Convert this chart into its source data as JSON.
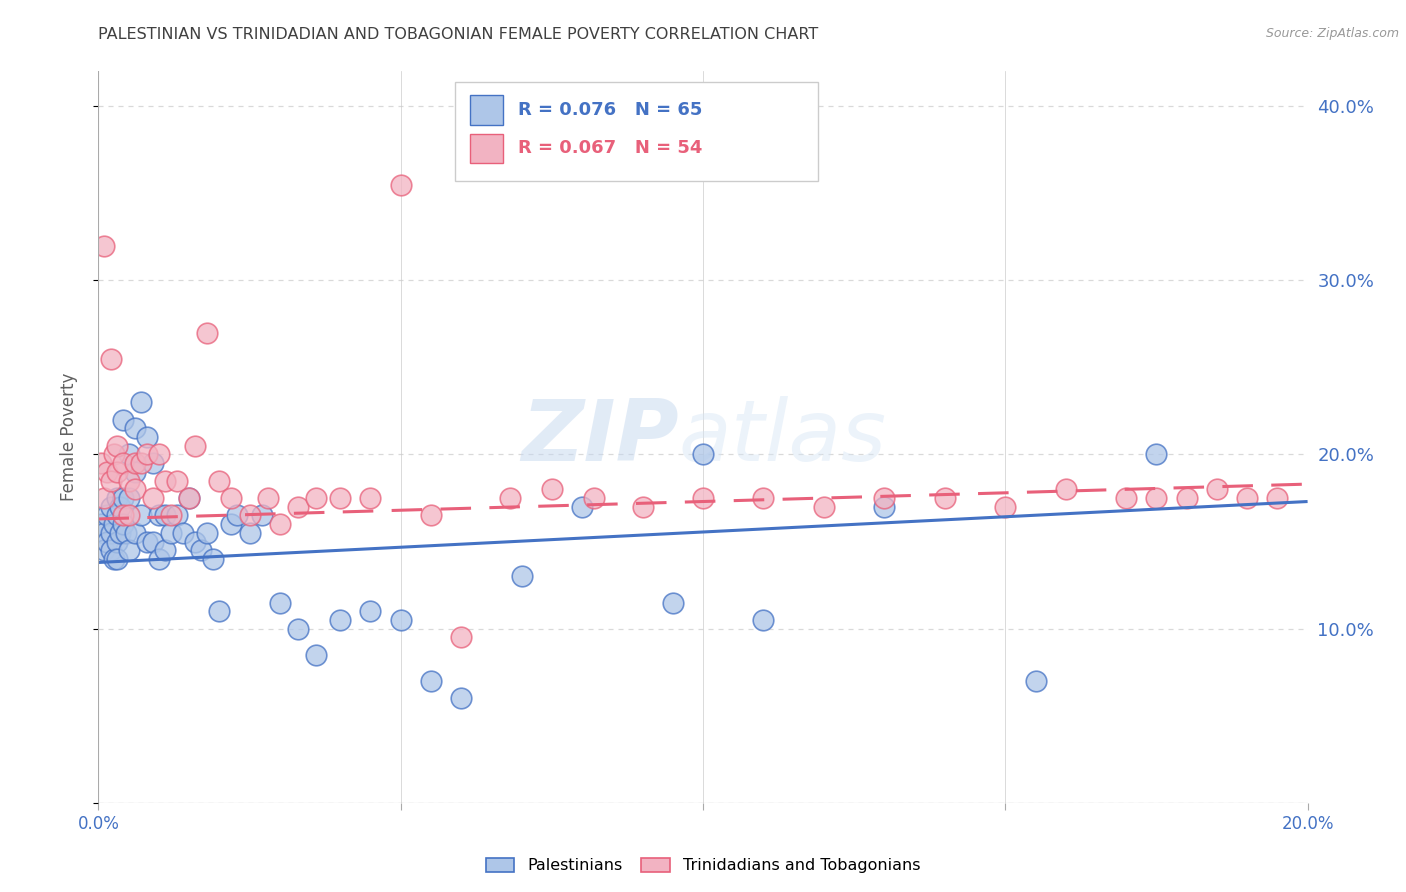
{
  "title": "PALESTINIAN VS TRINIDADIAN AND TOBAGONIAN FEMALE POVERTY CORRELATION CHART",
  "source": "Source: ZipAtlas.com",
  "ylabel_label": "Female Poverty",
  "xmin": 0.0,
  "xmax": 0.2,
  "ymin": 0.0,
  "ymax": 0.42,
  "yticks": [
    0.0,
    0.1,
    0.2,
    0.3,
    0.4
  ],
  "xticks": [
    0.0,
    0.05,
    0.1,
    0.15,
    0.2
  ],
  "blue_color": "#aec6e8",
  "pink_color": "#f2b3c2",
  "blue_line_color": "#4472c4",
  "pink_line_color": "#e8607a",
  "legend_blue_label": "Palestinians",
  "legend_pink_label": "Trinidadians and Tobagonians",
  "R_blue": 0.076,
  "N_blue": 65,
  "R_pink": 0.067,
  "N_pink": 54,
  "palestinians_x": [
    0.0005,
    0.001,
    0.001,
    0.0015,
    0.0015,
    0.002,
    0.002,
    0.002,
    0.0025,
    0.0025,
    0.003,
    0.003,
    0.003,
    0.003,
    0.0035,
    0.0035,
    0.004,
    0.004,
    0.004,
    0.0045,
    0.005,
    0.005,
    0.005,
    0.006,
    0.006,
    0.006,
    0.007,
    0.007,
    0.008,
    0.008,
    0.009,
    0.009,
    0.01,
    0.01,
    0.011,
    0.011,
    0.012,
    0.013,
    0.014,
    0.015,
    0.016,
    0.017,
    0.018,
    0.019,
    0.02,
    0.022,
    0.023,
    0.025,
    0.027,
    0.03,
    0.033,
    0.036,
    0.04,
    0.045,
    0.05,
    0.055,
    0.06,
    0.07,
    0.08,
    0.095,
    0.1,
    0.11,
    0.13,
    0.155,
    0.175
  ],
  "palestinians_y": [
    0.16,
    0.155,
    0.145,
    0.165,
    0.15,
    0.17,
    0.155,
    0.145,
    0.16,
    0.14,
    0.175,
    0.165,
    0.15,
    0.14,
    0.17,
    0.155,
    0.22,
    0.175,
    0.16,
    0.155,
    0.2,
    0.175,
    0.145,
    0.215,
    0.19,
    0.155,
    0.23,
    0.165,
    0.21,
    0.15,
    0.195,
    0.15,
    0.165,
    0.14,
    0.165,
    0.145,
    0.155,
    0.165,
    0.155,
    0.175,
    0.15,
    0.145,
    0.155,
    0.14,
    0.11,
    0.16,
    0.165,
    0.155,
    0.165,
    0.115,
    0.1,
    0.085,
    0.105,
    0.11,
    0.105,
    0.07,
    0.06,
    0.13,
    0.17,
    0.115,
    0.2,
    0.105,
    0.17,
    0.07,
    0.2
  ],
  "trinidadian_x": [
    0.0005,
    0.001,
    0.001,
    0.0015,
    0.002,
    0.002,
    0.0025,
    0.003,
    0.003,
    0.004,
    0.004,
    0.005,
    0.005,
    0.006,
    0.006,
    0.007,
    0.008,
    0.009,
    0.01,
    0.011,
    0.012,
    0.013,
    0.015,
    0.016,
    0.018,
    0.02,
    0.022,
    0.025,
    0.028,
    0.03,
    0.033,
    0.036,
    0.04,
    0.045,
    0.05,
    0.055,
    0.06,
    0.068,
    0.075,
    0.082,
    0.09,
    0.1,
    0.11,
    0.12,
    0.13,
    0.14,
    0.15,
    0.16,
    0.17,
    0.175,
    0.18,
    0.185,
    0.19,
    0.195
  ],
  "trinidadian_y": [
    0.195,
    0.32,
    0.175,
    0.19,
    0.185,
    0.255,
    0.2,
    0.19,
    0.205,
    0.195,
    0.165,
    0.185,
    0.165,
    0.18,
    0.195,
    0.195,
    0.2,
    0.175,
    0.2,
    0.185,
    0.165,
    0.185,
    0.175,
    0.205,
    0.27,
    0.185,
    0.175,
    0.165,
    0.175,
    0.16,
    0.17,
    0.175,
    0.175,
    0.175,
    0.355,
    0.165,
    0.095,
    0.175,
    0.18,
    0.175,
    0.17,
    0.175,
    0.175,
    0.17,
    0.175,
    0.175,
    0.17,
    0.18,
    0.175,
    0.175,
    0.175,
    0.18,
    0.175,
    0.175
  ],
  "watermark_zip": "ZIP",
  "watermark_atlas": "atlas",
  "background_color": "#ffffff",
  "grid_color": "#d9d9d9",
  "title_color": "#404040",
  "axis_label_color": "#606060",
  "right_axis_label_color": "#4472c4",
  "bottom_axis_label_color": "#4472c4"
}
